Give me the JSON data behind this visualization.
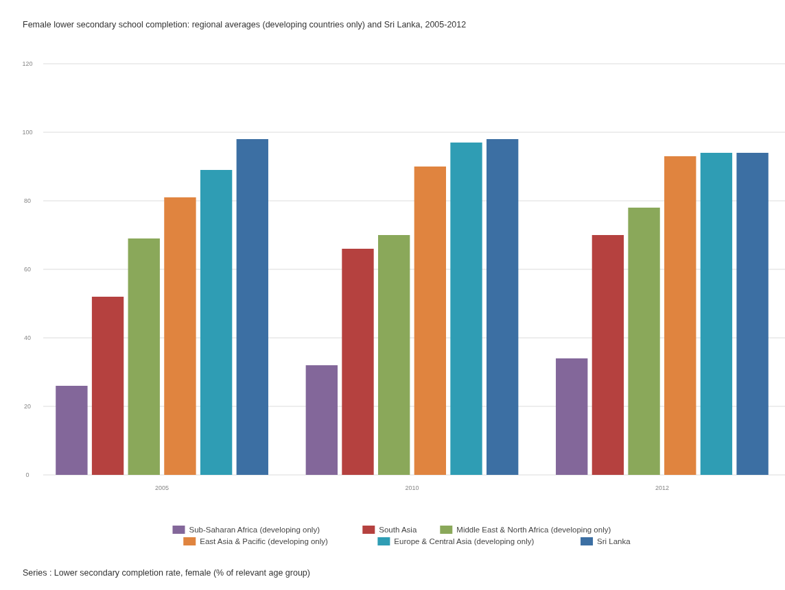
{
  "chart_data": {
    "type": "bar",
    "title": "Female lower secondary school completion: regional averages (developing countries only) and Sri Lanka, 2005-2012",
    "categories": [
      "2005",
      "2010",
      "2012"
    ],
    "series": [
      {
        "name": "Sub-Saharan Africa (developing only)",
        "color": "#83679a",
        "values": [
          26,
          32,
          34
        ]
      },
      {
        "name": "South Asia",
        "color": "#b5413f",
        "values": [
          52,
          66,
          70
        ]
      },
      {
        "name": "Middle East & North Africa (developing only)",
        "color": "#8aa85a",
        "values": [
          69,
          70,
          78
        ]
      },
      {
        "name": "East Asia & Pacific (developing only)",
        "color": "#e0843f",
        "values": [
          81,
          90,
          93
        ]
      },
      {
        "name": "Europe & Central Asia (developing only)",
        "color": "#2f9db4",
        "values": [
          89,
          97,
          94
        ]
      },
      {
        "name": "Sri Lanka",
        "color": "#3c6fa3",
        "values": [
          98,
          98,
          94
        ]
      }
    ],
    "ylim": [
      0,
      120
    ],
    "yticks": [
      0,
      20,
      40,
      60,
      80,
      100,
      120
    ],
    "grid": "y",
    "legend": "bottom",
    "annotations": [
      "Series : Lower secondary completion rate, female (% of relevant age group)"
    ]
  }
}
